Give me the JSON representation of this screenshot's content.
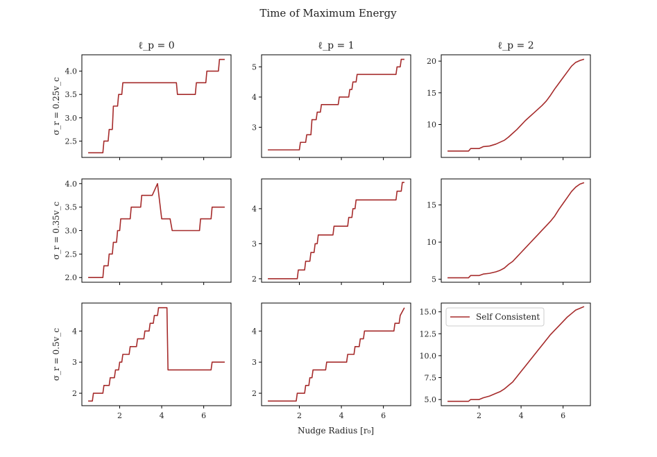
{
  "suptitle": "Time of Maximum Energy",
  "xlabel": "Nudge Radius [r₀]",
  "col_titles": [
    "ℓ_p = 0",
    "ℓ_p = 1",
    "ℓ_p = 2"
  ],
  "row_labels": [
    "σ_r = 0.25v_c",
    "σ_r = 0.35v_c",
    "σ_r = 0.5v_c"
  ],
  "legend": {
    "label": "Self Consistent",
    "color": "#a52a2a",
    "placement": "upper-left"
  },
  "line_color": "#a52a2a",
  "chart_data": [
    {
      "type": "line",
      "row": 0,
      "col": 0,
      "xlim": [
        0.2,
        7.3
      ],
      "ylim": [
        2.15,
        4.35
      ],
      "yticks": [
        2.5,
        3.0,
        3.5,
        4.0
      ],
      "xticks": [
        2,
        4,
        6
      ],
      "show_xtick_labels": false,
      "x": [
        0.5,
        1.2,
        1.25,
        1.45,
        1.5,
        1.65,
        1.7,
        1.9,
        1.95,
        2.1,
        2.15,
        2.3,
        2.4,
        2.55,
        4.7,
        4.75,
        5.6,
        5.65,
        6.1,
        6.15,
        6.5,
        6.55,
        6.7,
        6.75,
        7.0
      ],
      "y": [
        2.25,
        2.25,
        2.5,
        2.5,
        2.75,
        2.75,
        3.25,
        3.25,
        3.5,
        3.5,
        3.75,
        3.75,
        3.75,
        3.75,
        3.75,
        3.5,
        3.5,
        3.75,
        3.75,
        4.0,
        4.0,
        4.0,
        4.0,
        4.25,
        4.25
      ]
    },
    {
      "type": "line",
      "row": 0,
      "col": 1,
      "xlim": [
        0.2,
        7.3
      ],
      "ylim": [
        2.0,
        5.4
      ],
      "yticks": [
        3,
        4,
        5
      ],
      "xticks": [
        2,
        4,
        6
      ],
      "show_xtick_labels": false,
      "x": [
        0.5,
        2.0,
        2.05,
        2.3,
        2.35,
        2.55,
        2.6,
        2.8,
        2.85,
        3.0,
        3.05,
        3.2,
        3.25,
        3.85,
        3.9,
        4.35,
        4.4,
        4.5,
        4.55,
        4.7,
        4.75,
        6.6,
        6.65,
        6.8,
        6.85,
        7.0
      ],
      "y": [
        2.25,
        2.25,
        2.5,
        2.5,
        2.75,
        2.75,
        3.25,
        3.25,
        3.5,
        3.5,
        3.75,
        3.75,
        3.75,
        3.75,
        4.0,
        4.0,
        4.25,
        4.25,
        4.5,
        4.5,
        4.75,
        4.75,
        5.0,
        5.0,
        5.25,
        5.25
      ]
    },
    {
      "type": "line",
      "row": 0,
      "col": 2,
      "xlim": [
        0.2,
        7.3
      ],
      "ylim": [
        4.8,
        21.0
      ],
      "yticks": [
        10,
        15,
        20
      ],
      "xticks": [
        2,
        4,
        6
      ],
      "show_xtick_labels": false,
      "x": [
        0.5,
        1.0,
        1.5,
        1.6,
        2.0,
        2.2,
        2.5,
        2.8,
        3.0,
        3.2,
        3.4,
        3.6,
        3.8,
        4.0,
        4.2,
        4.4,
        4.6,
        4.8,
        5.0,
        5.2,
        5.4,
        5.6,
        5.8,
        6.0,
        6.2,
        6.4,
        6.6,
        6.8,
        7.0
      ],
      "y": [
        5.8,
        5.8,
        5.8,
        6.2,
        6.2,
        6.5,
        6.6,
        6.9,
        7.2,
        7.5,
        8.0,
        8.6,
        9.2,
        9.9,
        10.6,
        11.2,
        11.8,
        12.4,
        13.0,
        13.7,
        14.6,
        15.6,
        16.5,
        17.4,
        18.3,
        19.2,
        19.8,
        20.1,
        20.3
      ]
    },
    {
      "type": "line",
      "row": 1,
      "col": 0,
      "xlim": [
        0.2,
        7.3
      ],
      "ylim": [
        1.9,
        4.1
      ],
      "yticks": [
        2.0,
        2.5,
        3.0,
        3.5,
        4.0
      ],
      "xticks": [
        2,
        4,
        6
      ],
      "show_xtick_labels": false,
      "x": [
        0.5,
        1.2,
        1.25,
        1.45,
        1.5,
        1.65,
        1.7,
        1.85,
        1.9,
        2.0,
        2.05,
        2.2,
        2.25,
        2.5,
        2.55,
        3.0,
        3.05,
        3.5,
        3.55,
        3.8,
        4.0,
        4.4,
        4.5,
        5.8,
        5.85,
        6.35,
        6.4,
        6.9,
        7.0
      ],
      "y": [
        2.0,
        2.0,
        2.25,
        2.25,
        2.5,
        2.5,
        2.75,
        2.75,
        3.0,
        3.0,
        3.25,
        3.25,
        3.25,
        3.25,
        3.5,
        3.5,
        3.75,
        3.75,
        3.75,
        4.0,
        3.25,
        3.25,
        3.0,
        3.0,
        3.25,
        3.25,
        3.5,
        3.5,
        3.5
      ]
    },
    {
      "type": "line",
      "row": 1,
      "col": 1,
      "xlim": [
        0.2,
        7.3
      ],
      "ylim": [
        1.9,
        4.85
      ],
      "yticks": [
        2,
        3,
        4
      ],
      "xticks": [
        2,
        4,
        6
      ],
      "show_xtick_labels": false,
      "x": [
        0.5,
        1.9,
        1.95,
        2.25,
        2.3,
        2.5,
        2.55,
        2.7,
        2.75,
        2.85,
        2.9,
        3.0,
        3.05,
        3.6,
        3.65,
        4.3,
        4.35,
        4.5,
        4.55,
        4.65,
        4.7,
        4.9,
        4.95,
        6.6,
        6.65,
        6.85,
        6.9,
        7.0
      ],
      "y": [
        2.0,
        2.0,
        2.25,
        2.25,
        2.5,
        2.5,
        2.75,
        2.75,
        3.0,
        3.0,
        3.25,
        3.25,
        3.25,
        3.25,
        3.5,
        3.5,
        3.75,
        3.75,
        4.0,
        4.0,
        4.25,
        4.25,
        4.25,
        4.25,
        4.5,
        4.5,
        4.75,
        4.75
      ]
    },
    {
      "type": "line",
      "row": 1,
      "col": 2,
      "xlim": [
        0.2,
        7.3
      ],
      "ylim": [
        4.6,
        18.5
      ],
      "yticks": [
        5,
        10,
        15
      ],
      "xticks": [
        2,
        4,
        6
      ],
      "show_xtick_labels": false,
      "x": [
        0.5,
        1.0,
        1.5,
        1.6,
        2.0,
        2.2,
        2.5,
        2.8,
        3.0,
        3.2,
        3.4,
        3.6,
        3.8,
        4.0,
        4.2,
        4.4,
        4.6,
        4.8,
        5.0,
        5.2,
        5.4,
        5.6,
        5.8,
        6.0,
        6.2,
        6.4,
        6.6,
        6.8,
        7.0
      ],
      "y": [
        5.2,
        5.2,
        5.2,
        5.5,
        5.5,
        5.7,
        5.8,
        6.0,
        6.2,
        6.5,
        7.0,
        7.4,
        8.0,
        8.6,
        9.2,
        9.8,
        10.4,
        11.0,
        11.6,
        12.2,
        12.8,
        13.5,
        14.4,
        15.2,
        16.0,
        16.8,
        17.4,
        17.8,
        18.0
      ]
    },
    {
      "type": "line",
      "row": 2,
      "col": 0,
      "xlim": [
        0.2,
        7.3
      ],
      "ylim": [
        1.6,
        4.9
      ],
      "yticks": [
        2,
        3,
        4
      ],
      "xticks": [
        2,
        4,
        6
      ],
      "show_xtick_labels": true,
      "x": [
        0.5,
        0.7,
        0.75,
        1.2,
        1.25,
        1.5,
        1.55,
        1.75,
        1.8,
        1.95,
        2.0,
        2.1,
        2.15,
        2.45,
        2.5,
        2.8,
        2.85,
        3.15,
        3.2,
        3.4,
        3.45,
        3.6,
        3.65,
        3.8,
        3.85,
        4.0,
        4.05,
        4.15,
        4.25,
        4.3,
        6.35,
        6.4,
        7.0
      ],
      "y": [
        1.75,
        1.75,
        2.0,
        2.0,
        2.25,
        2.25,
        2.5,
        2.5,
        2.75,
        2.75,
        3.0,
        3.0,
        3.25,
        3.25,
        3.5,
        3.5,
        3.75,
        3.75,
        4.0,
        4.0,
        4.25,
        4.25,
        4.5,
        4.5,
        4.75,
        4.75,
        4.75,
        4.75,
        4.75,
        2.75,
        2.75,
        3.0,
        3.0
      ]
    },
    {
      "type": "line",
      "row": 2,
      "col": 1,
      "xlim": [
        0.2,
        7.3
      ],
      "ylim": [
        1.6,
        4.9
      ],
      "yticks": [
        2,
        3,
        4
      ],
      "xticks": [
        2,
        4,
        6
      ],
      "show_xtick_labels": true,
      "x": [
        0.5,
        1.85,
        1.9,
        2.25,
        2.3,
        2.45,
        2.5,
        2.6,
        2.65,
        2.8,
        2.85,
        3.25,
        3.3,
        4.25,
        4.3,
        4.6,
        4.65,
        4.85,
        4.9,
        5.05,
        5.1,
        5.3,
        5.35,
        6.5,
        6.55,
        6.75,
        6.8,
        7.0
      ],
      "y": [
        1.75,
        1.75,
        2.0,
        2.0,
        2.25,
        2.25,
        2.5,
        2.5,
        2.75,
        2.75,
        2.75,
        2.75,
        3.0,
        3.0,
        3.25,
        3.25,
        3.5,
        3.5,
        3.75,
        3.75,
        4.0,
        4.0,
        4.0,
        4.0,
        4.25,
        4.25,
        4.5,
        4.75
      ]
    },
    {
      "type": "line",
      "row": 2,
      "col": 2,
      "xlim": [
        0.2,
        7.3
      ],
      "ylim": [
        4.3,
        16.0
      ],
      "yticks": [
        5.0,
        7.5,
        10.0,
        12.5,
        15.0
      ],
      "xticks": [
        2,
        4,
        6
      ],
      "show_xtick_labels": true,
      "x": [
        0.5,
        1.0,
        1.5,
        1.6,
        2.0,
        2.2,
        2.5,
        2.8,
        3.0,
        3.2,
        3.4,
        3.6,
        3.8,
        4.0,
        4.2,
        4.4,
        4.6,
        4.8,
        5.0,
        5.2,
        5.4,
        5.6,
        5.8,
        6.0,
        6.2,
        6.4,
        6.6,
        6.8,
        7.0
      ],
      "y": [
        4.8,
        4.8,
        4.8,
        5.0,
        5.0,
        5.2,
        5.4,
        5.7,
        5.9,
        6.2,
        6.6,
        7.0,
        7.6,
        8.2,
        8.8,
        9.4,
        10.0,
        10.6,
        11.2,
        11.8,
        12.4,
        12.9,
        13.4,
        13.9,
        14.4,
        14.8,
        15.2,
        15.4,
        15.6
      ]
    }
  ]
}
